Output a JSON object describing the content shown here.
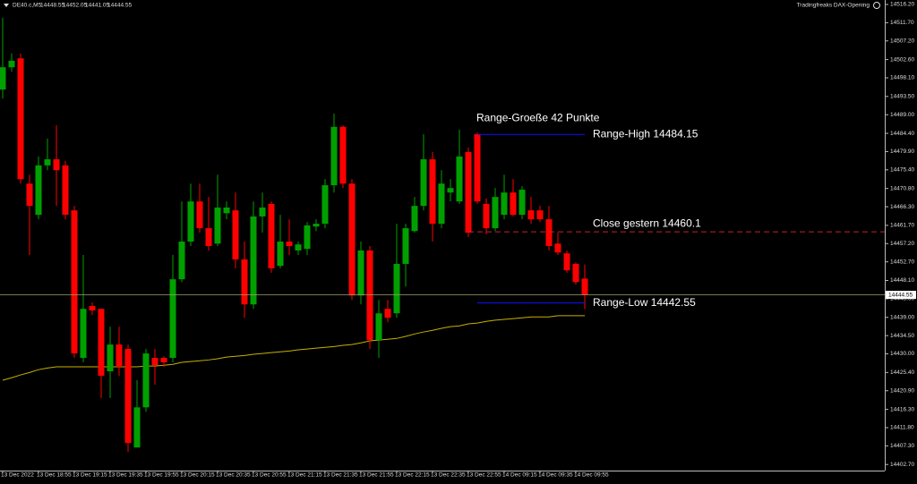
{
  "chart_data": {
    "type": "candlestick",
    "symbol": "DE40.c,M5",
    "indicator": "Tradingfreaks DAX-Opening",
    "annotation": "Range-Groeße 42 Punkte",
    "categories": [
      "13 Dec 2022",
      null,
      null,
      null,
      "13 Dec 18:55",
      null,
      null,
      null,
      "13 Dec 19:15",
      null,
      null,
      null,
      "13 Dec 19:35",
      null,
      null,
      null,
      "13 Dec 19:55",
      null,
      null,
      null,
      "13 Dec 20:15",
      null,
      null,
      null,
      "13 Dec 20:35",
      null,
      null,
      null,
      "13 Dec 20:55",
      null,
      null,
      null,
      "13 Dec 21:15",
      null,
      null,
      null,
      "13 Dec 21:35",
      null,
      null,
      null,
      "13 Dec 21:55",
      null,
      null,
      null,
      "13 Dec 22:15",
      null,
      null,
      null,
      "13 Dec 22:35",
      null,
      null,
      null,
      "13 Dec 22:55",
      null,
      null,
      null,
      "14 Dec 09:15",
      null,
      null,
      null,
      "14 Dec 09:35",
      null,
      null,
      null,
      "14 Dec 09:55",
      null
    ],
    "open": [
      14495.2,
      14500.7,
      14502.9,
      14472.0,
      14464.3,
      14476.5,
      14478.0,
      14476.5,
      14465.4,
      14429.0,
      14441.8,
      14441.1,
      14425.7,
      14432.3,
      14431.2,
      14406.9,
      14416.8,
      14429.0,
      14429.0,
      14429.0,
      14448.4,
      14457.7,
      14467.6,
      14461.0,
      14457.2,
      14464.7,
      14465.4,
      14453.3,
      14442.2,
      14463.9,
      14467.0,
      14451.7,
      14457.7,
      14455.5,
      14455.9,
      14461.4,
      14462.1,
      14471.6,
      14486.0,
      14472.0,
      14444.4,
      14455.5,
      14433.4,
      14441.1,
      14440.0,
      14452.2,
      14460.3,
      14466.5,
      14478.0,
      14462.1,
      14469.8,
      14467.6,
      14479.8,
      14484.2,
      14467.0,
      14461.0,
      14464.3,
      14469.8,
      14464.3,
      14465.4,
      14465.4,
      14463.2,
      14457.2,
      14454.8,
      14452.2,
      14448.55
    ],
    "high": [
      14512.9,
      14504.1,
      14504.1,
      14474.2,
      14478.7,
      14483.1,
      14486.4,
      14477.6,
      14466.5,
      14454.4,
      14442.7,
      14441.1,
      14436.7,
      14436.7,
      14432.3,
      14423.5,
      14431.2,
      14431.2,
      14429.4,
      14454.4,
      14467.6,
      14472.0,
      14472.0,
      14468.7,
      14474.2,
      14467.6,
      14469.8,
      14457.7,
      14467.6,
      14469.8,
      14467.6,
      14464.3,
      14463.2,
      14457.7,
      14462.5,
      14463.2,
      14473.1,
      14489.3,
      14486.4,
      14473.1,
      14457.7,
      14456.6,
      14443.3,
      14443.3,
      14462.1,
      14462.1,
      14468.7,
      14484.2,
      14479.8,
      14475.3,
      14473.1,
      14485.3,
      14480.9,
      14484.6,
      14468.3,
      14470.9,
      14474.2,
      14473.1,
      14471.4,
      14468.7,
      14466.5,
      14466.5,
      14459.9,
      14455.5,
      14452.6,
      14452.05
    ],
    "low": [
      14493.0,
      14499.6,
      14472.0,
      14454.4,
      14463.2,
      14475.3,
      14466.5,
      14463.2,
      14429.0,
      14427.9,
      14439.6,
      14419.1,
      14419.1,
      14424.6,
      14405.8,
      14406.9,
      14415.7,
      14422.4,
      14426.8,
      14427.9,
      14447.7,
      14456.6,
      14459.9,
      14455.5,
      14456.6,
      14463.2,
      14451.1,
      14438.9,
      14441.1,
      14459.9,
      14450.0,
      14451.1,
      14454.4,
      14454.4,
      14454.4,
      14460.3,
      14461.0,
      14469.8,
      14470.9,
      14443.3,
      14442.2,
      14431.2,
      14429.0,
      14437.8,
      14438.9,
      14446.6,
      14459.9,
      14465.4,
      14457.7,
      14461.0,
      14467.6,
      14467.0,
      14458.8,
      14467.0,
      14459.5,
      14460.3,
      14463.2,
      14463.9,
      14463.2,
      14462.1,
      14462.5,
      14455.5,
      14454.4,
      14450.0,
      14447.1,
      14441.05
    ],
    "close": [
      14500.7,
      14502.3,
      14473.1,
      14466.5,
      14476.5,
      14478.0,
      14475.3,
      14464.3,
      14430.1,
      14441.1,
      14440.7,
      14424.6,
      14432.3,
      14426.8,
      14408.0,
      14416.8,
      14430.1,
      14427.2,
      14427.9,
      14448.4,
      14457.7,
      14467.6,
      14461.0,
      14456.6,
      14466.1,
      14466.1,
      14453.3,
      14442.2,
      14463.9,
      14466.1,
      14451.1,
      14457.7,
      14456.6,
      14457.0,
      14461.7,
      14462.1,
      14471.6,
      14486.0,
      14472.0,
      14444.4,
      14455.5,
      14433.4,
      14440.0,
      14438.9,
      14452.2,
      14461.0,
      14466.5,
      14478.0,
      14462.1,
      14472.0,
      14470.9,
      14478.7,
      14459.9,
      14467.6,
      14461.0,
      14468.7,
      14469.8,
      14464.3,
      14470.5,
      14463.2,
      14463.2,
      14456.6,
      14455.0,
      14450.6,
      14447.7,
      14444.55
    ],
    "up_color": "#00a000",
    "down_color": "#ff0000",
    "ma": {
      "color": "#c8b000",
      "values": [
        14423.5,
        14424.1,
        14424.8,
        14425.4,
        14426.1,
        14426.5,
        14426.8,
        14426.8,
        14426.8,
        14426.8,
        14426.8,
        14426.8,
        14426.8,
        14426.8,
        14426.8,
        14426.8,
        14427.0,
        14427.0,
        14427.2,
        14427.4,
        14427.9,
        14428.1,
        14428.3,
        14428.5,
        14428.8,
        14429.2,
        14429.4,
        14429.6,
        14429.9,
        14430.1,
        14430.3,
        14430.5,
        14430.7,
        14431.0,
        14431.2,
        14431.4,
        14431.6,
        14431.8,
        14432.1,
        14432.3,
        14432.7,
        14433.2,
        14433.4,
        14433.6,
        14433.8,
        14434.3,
        14434.9,
        14435.4,
        14435.8,
        14436.3,
        14436.7,
        14436.9,
        14437.4,
        14437.6,
        14438.0,
        14438.3,
        14438.5,
        14438.7,
        14438.9,
        14439.1,
        14439.1,
        14439.1,
        14439.4,
        14439.4,
        14439.4,
        14439.4
      ]
    },
    "levels": [
      {
        "label": "Range-High 14484.15",
        "value": 14484.15,
        "color": "#1010ff"
      },
      {
        "label": "Close gestern 14460.1",
        "value": 14460.1,
        "color": "#c0203a",
        "dashed": true
      },
      {
        "label": "Range-Low 14442.55",
        "value": 14442.55,
        "color": "#1010ff"
      }
    ],
    "ylim": [
      14401.2,
      14517.3
    ],
    "yticks": [
      {
        "value": 14516.2,
        "label": "14516.20"
      },
      {
        "value": 14511.7,
        "label": "14511.70"
      },
      {
        "value": 14507.2,
        "label": "14507.20"
      },
      {
        "value": 14502.6,
        "label": "14502.60"
      },
      {
        "value": 14498.1,
        "label": "14498.10"
      },
      {
        "value": 14493.5,
        "label": "14493.50"
      },
      {
        "value": 14489,
        "label": "14489.00"
      },
      {
        "value": 14484.4,
        "label": "14484.40"
      },
      {
        "value": 14479.9,
        "label": "14479.90"
      },
      {
        "value": 14475.4,
        "label": "14475.40"
      },
      {
        "value": 14470.8,
        "label": "14470.80"
      },
      {
        "value": 14466.3,
        "label": "14466.30"
      },
      {
        "value": 14461.7,
        "label": "14461.70"
      },
      {
        "value": 14457.2,
        "label": "14457.20"
      },
      {
        "value": 14452.7,
        "label": "14452.70"
      },
      {
        "value": 14448.1,
        "label": "14448.10"
      },
      {
        "value": 14443.6,
        "label": "14443.60"
      },
      {
        "value": 14439,
        "label": "14439.00"
      },
      {
        "value": 14434.5,
        "label": "14434.50"
      },
      {
        "value": 14430,
        "label": "14430.00"
      },
      {
        "value": 14425.4,
        "label": "14425.40"
      },
      {
        "value": 14420.9,
        "label": "14420.90"
      },
      {
        "value": 14416.3,
        "label": "14416.30"
      },
      {
        "value": 14411.8,
        "label": "14411.80"
      },
      {
        "value": 14407.3,
        "label": "14407.30"
      },
      {
        "value": 14402.7,
        "label": "14402.70"
      }
    ]
  }
}
